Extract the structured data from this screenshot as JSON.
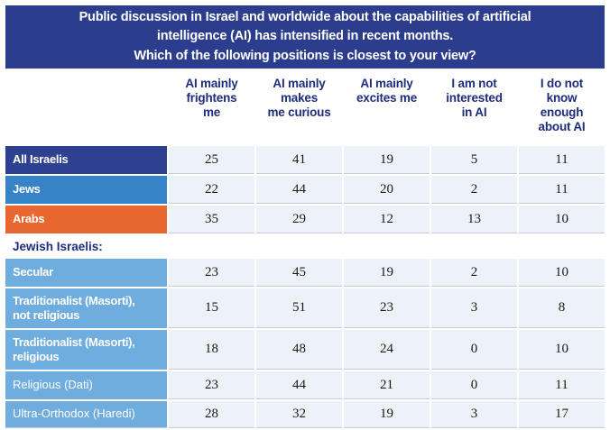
{
  "title": {
    "text": "Public discussion in Israel and worldwide about the capabilities of artificial\nintelligence (AI) has intensified in recent months.\nWhich of the following positions is closest to your view?"
  },
  "columns": [
    "AI mainly\nfrightens\nme",
    "AI mainly\nmakes\nme curious",
    "AI mainly\nexcites me",
    "I am not\ninterested\nin AI",
    "I do not\nknow\nenough\nabout AI"
  ],
  "rows": [
    {
      "label": "All Israelis",
      "style": "navy",
      "values": [
        25,
        41,
        19,
        5,
        11
      ]
    },
    {
      "label": "Jews",
      "style": "blue",
      "values": [
        22,
        44,
        20,
        2,
        11
      ]
    },
    {
      "label": "Arabs",
      "style": "orange",
      "values": [
        35,
        29,
        12,
        13,
        10
      ]
    },
    {
      "label": "Jewish Israelis:",
      "style": "section",
      "values": []
    },
    {
      "label": "Secular",
      "style": "lightblue-bold",
      "values": [
        23,
        45,
        19,
        2,
        10
      ]
    },
    {
      "label": "Traditionalist (Masorti),\nnot religious",
      "style": "lightblue-bold",
      "values": [
        15,
        51,
        23,
        3,
        8
      ]
    },
    {
      "label": "Traditionalist (Masorti),\nreligious",
      "style": "lightblue-bold",
      "values": [
        18,
        48,
        24,
        0,
        10
      ]
    },
    {
      "label": "Religious (Dati)",
      "style": "lightblue-regular",
      "values": [
        23,
        44,
        21,
        0,
        11
      ]
    },
    {
      "label": "Ultra-Orthodox (Haredi)",
      "style": "lightblue-regular",
      "values": [
        28,
        32,
        19,
        3,
        17
      ]
    }
  ],
  "colors": {
    "title-bg": "#2B3D8C",
    "row-navy": "#2D4190",
    "row-blue": "#3783C7",
    "row-orange": "#E8662F",
    "row-lightblue": "#70ADDF",
    "cell-bg": "#EDF1F8",
    "line": "#C7CCD6",
    "header-text": "#1F2D7C",
    "value-text": "#1A1A1A",
    "label-text": "#FFFFFF",
    "page-bg": "#FFFFFF"
  },
  "chart_data": {
    "type": "table",
    "title": "Public discussion in Israel and worldwide about the capabilities of artificial intelligence (AI) has intensified in recent months. Which of the following positions is closest to your view?",
    "columns": [
      "AI mainly frightens me",
      "AI mainly makes me curious",
      "AI mainly excites me",
      "I am not interested in AI",
      "I do not know enough about AI"
    ],
    "rows": [
      {
        "group": "All Israelis",
        "values": [
          25,
          41,
          19,
          5,
          11
        ]
      },
      {
        "group": "Jews",
        "values": [
          22,
          44,
          20,
          2,
          11
        ]
      },
      {
        "group": "Arabs",
        "values": [
          35,
          29,
          12,
          13,
          10
        ]
      },
      {
        "group": "Jewish Israelis: Secular",
        "values": [
          23,
          45,
          19,
          2,
          10
        ]
      },
      {
        "group": "Jewish Israelis: Traditionalist (Masorti), not religious",
        "values": [
          15,
          51,
          23,
          3,
          8
        ]
      },
      {
        "group": "Jewish Israelis: Traditionalist (Masorti), religious",
        "values": [
          18,
          48,
          24,
          0,
          10
        ]
      },
      {
        "group": "Jewish Israelis: Religious (Dati)",
        "values": [
          23,
          44,
          21,
          0,
          11
        ]
      },
      {
        "group": "Jewish Israelis: Ultra-Orthodox (Haredi)",
        "values": [
          28,
          32,
          19,
          3,
          17
        ]
      }
    ],
    "units": "percent"
  }
}
